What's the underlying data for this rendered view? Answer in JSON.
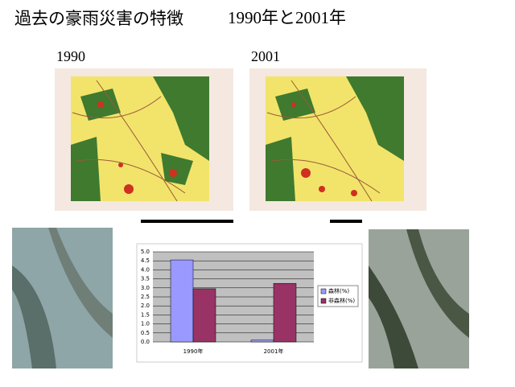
{
  "header": {
    "title": "過去の豪雨災害の特徴",
    "subtitle": "1990年と2001年"
  },
  "maps": [
    {
      "label": "1990"
    },
    {
      "label": "2001"
    }
  ],
  "chart_data": {
    "type": "bar",
    "categories": [
      "1990年",
      "2001年"
    ],
    "series": [
      {
        "name": "森林(%)",
        "color": "#9999ff",
        "values": [
          4.55,
          0.1
        ]
      },
      {
        "name": "非森林(%)",
        "color": "#993366",
        "values": [
          2.95,
          3.25
        ]
      }
    ],
    "ylim": [
      0,
      5
    ],
    "yticks": [
      {
        "value": 0,
        "label": "0.0"
      },
      {
        "value": 0.5,
        "label": "0.5"
      },
      {
        "value": 1,
        "label": "1.0"
      },
      {
        "value": 1.5,
        "label": "1.5"
      },
      {
        "value": 2,
        "label": "2.0"
      },
      {
        "value": 2.5,
        "label": "2.5"
      },
      {
        "value": 3,
        "label": "3.0"
      },
      {
        "value": 3.5,
        "label": "3.5"
      },
      {
        "value": 4,
        "label": "4.0"
      },
      {
        "value": 4.5,
        "label": "4.5"
      },
      {
        "value": 5,
        "label": "5.0"
      }
    ],
    "grid": true,
    "legend": "right"
  }
}
